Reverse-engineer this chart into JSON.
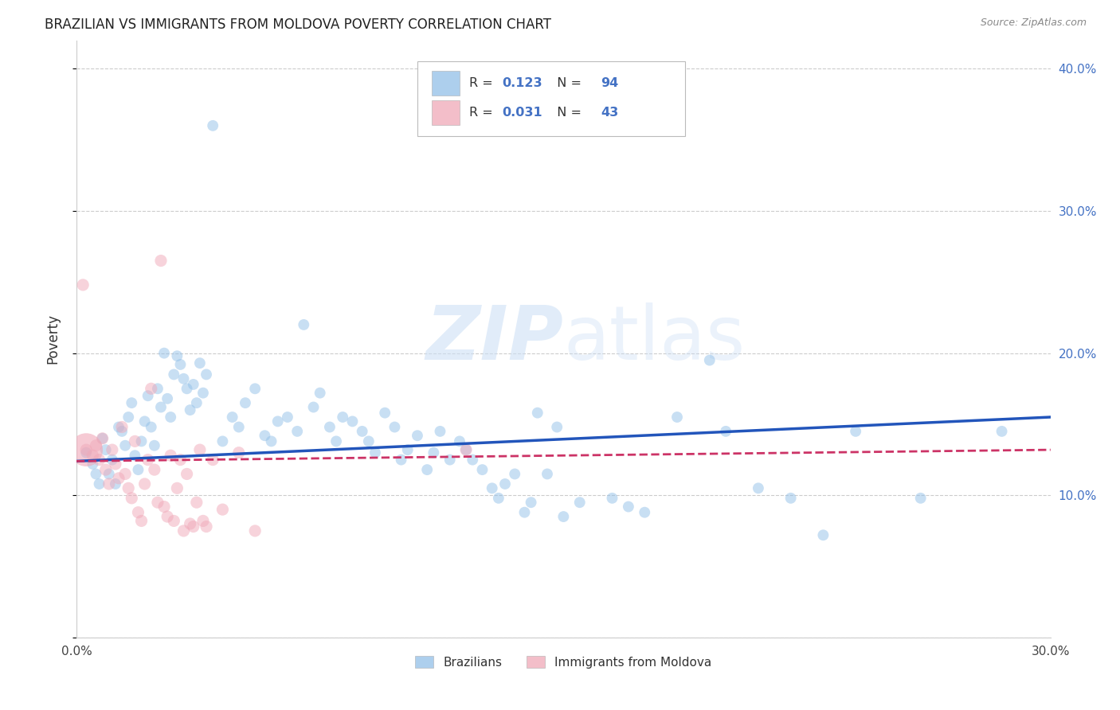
{
  "title": "BRAZILIAN VS IMMIGRANTS FROM MOLDOVA POVERTY CORRELATION CHART",
  "source": "Source: ZipAtlas.com",
  "ylabel": "Poverty",
  "watermark": "ZIPatlas",
  "xlim": [
    0.0,
    0.3
  ],
  "ylim": [
    0.0,
    0.42
  ],
  "r_brazilian": 0.123,
  "n_brazilian": 94,
  "r_moldova": 0.031,
  "n_moldova": 43,
  "color_brazilian": "#92c0e8",
  "color_moldova": "#f0a8b8",
  "legend_label_braz": "Brazilians",
  "legend_label_mold": "Immigrants from Moldova",
  "legend_text_color": "#4472c4",
  "trend_blue": "#2255bb",
  "trend_pink": "#cc3366",
  "grid_color": "#cccccc",
  "spine_color": "#cccccc",
  "braz_line_y0": 0.124,
  "braz_line_y1": 0.155,
  "mold_line_y0": 0.124,
  "mold_line_y1": 0.132,
  "brazilian_data": [
    [
      0.003,
      0.13
    ],
    [
      0.005,
      0.122
    ],
    [
      0.006,
      0.115
    ],
    [
      0.007,
      0.108
    ],
    [
      0.008,
      0.14
    ],
    [
      0.009,
      0.132
    ],
    [
      0.01,
      0.115
    ],
    [
      0.011,
      0.125
    ],
    [
      0.012,
      0.108
    ],
    [
      0.013,
      0.148
    ],
    [
      0.014,
      0.145
    ],
    [
      0.015,
      0.135
    ],
    [
      0.016,
      0.155
    ],
    [
      0.017,
      0.165
    ],
    [
      0.018,
      0.128
    ],
    [
      0.019,
      0.118
    ],
    [
      0.02,
      0.138
    ],
    [
      0.021,
      0.152
    ],
    [
      0.022,
      0.17
    ],
    [
      0.023,
      0.148
    ],
    [
      0.024,
      0.135
    ],
    [
      0.025,
      0.175
    ],
    [
      0.026,
      0.162
    ],
    [
      0.027,
      0.2
    ],
    [
      0.028,
      0.168
    ],
    [
      0.029,
      0.155
    ],
    [
      0.03,
      0.185
    ],
    [
      0.031,
      0.198
    ],
    [
      0.032,
      0.192
    ],
    [
      0.033,
      0.182
    ],
    [
      0.034,
      0.175
    ],
    [
      0.035,
      0.16
    ],
    [
      0.036,
      0.178
    ],
    [
      0.037,
      0.165
    ],
    [
      0.038,
      0.193
    ],
    [
      0.039,
      0.172
    ],
    [
      0.04,
      0.185
    ],
    [
      0.042,
      0.36
    ],
    [
      0.045,
      0.138
    ],
    [
      0.048,
      0.155
    ],
    [
      0.05,
      0.148
    ],
    [
      0.052,
      0.165
    ],
    [
      0.055,
      0.175
    ],
    [
      0.058,
      0.142
    ],
    [
      0.06,
      0.138
    ],
    [
      0.062,
      0.152
    ],
    [
      0.065,
      0.155
    ],
    [
      0.068,
      0.145
    ],
    [
      0.07,
      0.22
    ],
    [
      0.073,
      0.162
    ],
    [
      0.075,
      0.172
    ],
    [
      0.078,
      0.148
    ],
    [
      0.08,
      0.138
    ],
    [
      0.082,
      0.155
    ],
    [
      0.085,
      0.152
    ],
    [
      0.088,
      0.145
    ],
    [
      0.09,
      0.138
    ],
    [
      0.092,
      0.13
    ],
    [
      0.095,
      0.158
    ],
    [
      0.098,
      0.148
    ],
    [
      0.1,
      0.125
    ],
    [
      0.102,
      0.132
    ],
    [
      0.105,
      0.142
    ],
    [
      0.108,
      0.118
    ],
    [
      0.11,
      0.13
    ],
    [
      0.112,
      0.145
    ],
    [
      0.115,
      0.125
    ],
    [
      0.118,
      0.138
    ],
    [
      0.12,
      0.132
    ],
    [
      0.122,
      0.125
    ],
    [
      0.125,
      0.118
    ],
    [
      0.128,
      0.105
    ],
    [
      0.13,
      0.098
    ],
    [
      0.132,
      0.108
    ],
    [
      0.135,
      0.115
    ],
    [
      0.138,
      0.088
    ],
    [
      0.14,
      0.095
    ],
    [
      0.142,
      0.158
    ],
    [
      0.145,
      0.115
    ],
    [
      0.148,
      0.148
    ],
    [
      0.15,
      0.085
    ],
    [
      0.155,
      0.095
    ],
    [
      0.165,
      0.098
    ],
    [
      0.17,
      0.092
    ],
    [
      0.175,
      0.088
    ],
    [
      0.185,
      0.155
    ],
    [
      0.195,
      0.195
    ],
    [
      0.2,
      0.145
    ],
    [
      0.21,
      0.105
    ],
    [
      0.22,
      0.098
    ],
    [
      0.23,
      0.072
    ],
    [
      0.24,
      0.145
    ],
    [
      0.26,
      0.098
    ],
    [
      0.285,
      0.145
    ]
  ],
  "moldova_data": [
    [
      0.003,
      0.132
    ],
    [
      0.005,
      0.128
    ],
    [
      0.006,
      0.135
    ],
    [
      0.007,
      0.125
    ],
    [
      0.008,
      0.14
    ],
    [
      0.009,
      0.118
    ],
    [
      0.01,
      0.108
    ],
    [
      0.011,
      0.132
    ],
    [
      0.012,
      0.122
    ],
    [
      0.013,
      0.112
    ],
    [
      0.014,
      0.148
    ],
    [
      0.015,
      0.115
    ],
    [
      0.016,
      0.105
    ],
    [
      0.017,
      0.098
    ],
    [
      0.018,
      0.138
    ],
    [
      0.019,
      0.088
    ],
    [
      0.02,
      0.082
    ],
    [
      0.021,
      0.108
    ],
    [
      0.022,
      0.125
    ],
    [
      0.023,
      0.175
    ],
    [
      0.024,
      0.118
    ],
    [
      0.025,
      0.095
    ],
    [
      0.026,
      0.265
    ],
    [
      0.027,
      0.092
    ],
    [
      0.028,
      0.085
    ],
    [
      0.029,
      0.128
    ],
    [
      0.03,
      0.082
    ],
    [
      0.031,
      0.105
    ],
    [
      0.032,
      0.125
    ],
    [
      0.033,
      0.075
    ],
    [
      0.034,
      0.115
    ],
    [
      0.035,
      0.08
    ],
    [
      0.036,
      0.078
    ],
    [
      0.037,
      0.095
    ],
    [
      0.038,
      0.132
    ],
    [
      0.039,
      0.082
    ],
    [
      0.04,
      0.078
    ],
    [
      0.042,
      0.125
    ],
    [
      0.045,
      0.09
    ],
    [
      0.05,
      0.13
    ],
    [
      0.055,
      0.075
    ],
    [
      0.002,
      0.248
    ],
    [
      0.12,
      0.132
    ]
  ],
  "moldova_big_dot": [
    0.003,
    0.132
  ],
  "marker_size_braz": 100,
  "marker_size_mold": 120,
  "marker_size_mold_big": 900,
  "alpha_braz": 0.5,
  "alpha_mold": 0.5
}
